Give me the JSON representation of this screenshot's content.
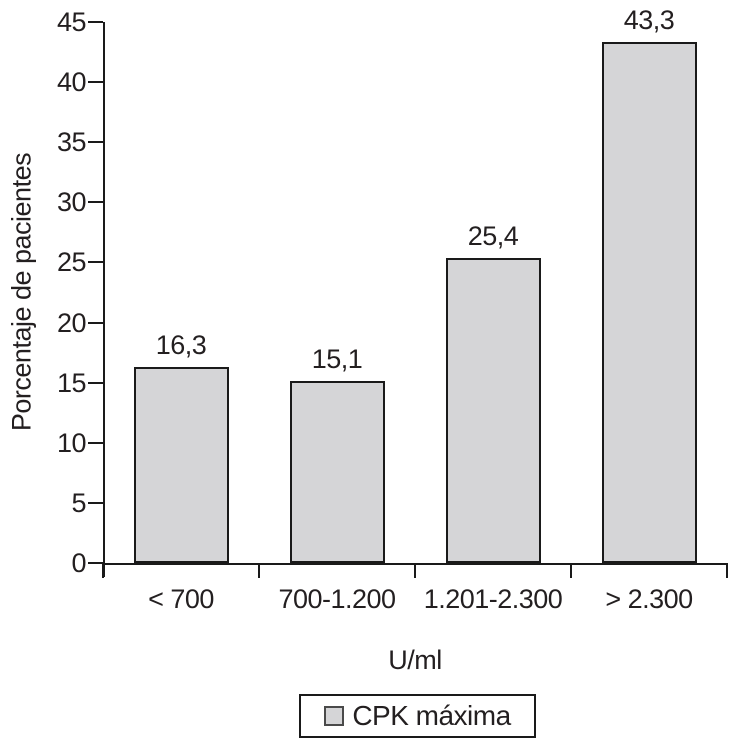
{
  "chart_data": {
    "type": "bar",
    "title": "",
    "categories": [
      "< 700",
      "700-1.200",
      "1.201-2.300",
      "> 2.300"
    ],
    "values": [
      16.3,
      15.1,
      25.4,
      43.3
    ],
    "value_labels": [
      "16,3",
      "15,1",
      "25,4",
      "43,3"
    ],
    "xlabel": "U/ml",
    "ylabel": "Porcentaje de pacientes",
    "ylim": [
      0,
      45
    ],
    "yticks": [
      0,
      5,
      10,
      15,
      20,
      25,
      30,
      35,
      40,
      45
    ],
    "grid": false,
    "legend": {
      "label": "CPK máxima",
      "position": "bottom-center"
    },
    "colors": {
      "bar_fill": "#d5d5d7",
      "bar_border": "#1a1a1a",
      "axis": "#1a1a1a",
      "text": "#231f20"
    }
  }
}
